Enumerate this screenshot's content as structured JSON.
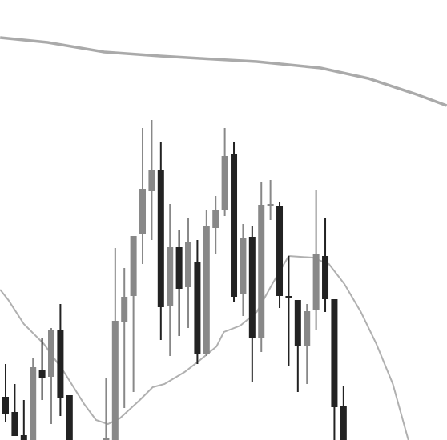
{
  "chart_data": {
    "type": "candlestick",
    "x": [
      0,
      1,
      2,
      3,
      4,
      5,
      6,
      7,
      11,
      12,
      13,
      14,
      15,
      16,
      17,
      18,
      19,
      20,
      21,
      22,
      23,
      24,
      25,
      26,
      27,
      28,
      29,
      30,
      31,
      32,
      33,
      34,
      35,
      36,
      37
    ],
    "open": [
      54,
      35,
      6,
      0,
      88,
      79,
      137,
      56,
      0,
      0,
      148,
      180,
      258,
      311,
      337,
      167,
      241,
      191,
      222,
      108,
      265,
      287,
      357,
      183,
      254,
      128,
      293,
      293,
      180,
      175,
      118,
      162,
      230,
      176,
      43
    ],
    "high": [
      95,
      70,
      50,
      103,
      127,
      140,
      170,
      56,
      77,
      240,
      215,
      255,
      390,
      400,
      372,
      295,
      263,
      278,
      250,
      288,
      305,
      390,
      372,
      270,
      267,
      322,
      325,
      298,
      230,
      175,
      170,
      312,
      278,
      176,
      67
    ],
    "low": [
      23,
      5,
      0,
      0,
      50,
      20,
      30,
      0,
      0,
      0,
      40,
      60,
      220,
      250,
      125,
      105,
      130,
      140,
      95,
      105,
      232,
      280,
      172,
      155,
      72,
      110,
      275,
      165,
      93,
      60,
      70,
      138,
      160,
      0,
      0
    ],
    "close": [
      33,
      5,
      0,
      91,
      78,
      137,
      53,
      0,
      2,
      149,
      179,
      255,
      314,
      338,
      166,
      241,
      189,
      248,
      108,
      267,
      288,
      355,
      179,
      253,
      127,
      294,
      295,
      180,
      178,
      118,
      161,
      232,
      176,
      41,
      0
    ],
    "up_color": "#888888",
    "down_color": "#222222",
    "lines": [
      {
        "color": "#aaaaaa",
        "width": 3.5,
        "x": [
          -0.6,
          4.6,
          10.8,
          16.9,
          21.3,
          27.5,
          34.5,
          39.7,
          45.0,
          48.3
        ],
        "values": [
          503,
          497,
          485,
          480,
          477,
          473,
          465,
          452,
          432,
          418
        ]
      },
      {
        "color": "#b0b0b0",
        "width": 2,
        "x": [
          -0.6,
          0.3,
          2.0,
          4.2,
          6.4,
          8.6,
          9.9,
          11.2,
          12.5,
          14.7,
          16.1,
          17.4,
          19.6,
          21.3,
          23.1,
          23.9,
          25.7,
          27.5,
          29.2,
          31.0,
          33.6,
          35.4,
          37.1,
          38.9,
          40.6,
          42.4,
          44.1
        ],
        "values": [
          188,
          175,
          145,
          120,
          85,
          45,
          25,
          20,
          27,
          50,
          66,
          70,
          85,
          100,
          117,
          135,
          143,
          160,
          195,
          230,
          228,
          220,
          195,
          160,
          120,
          70,
          0
        ]
      }
    ],
    "xlim": [
      -0.614,
      48.33
    ],
    "ylim": [
      0,
      550
    ]
  }
}
